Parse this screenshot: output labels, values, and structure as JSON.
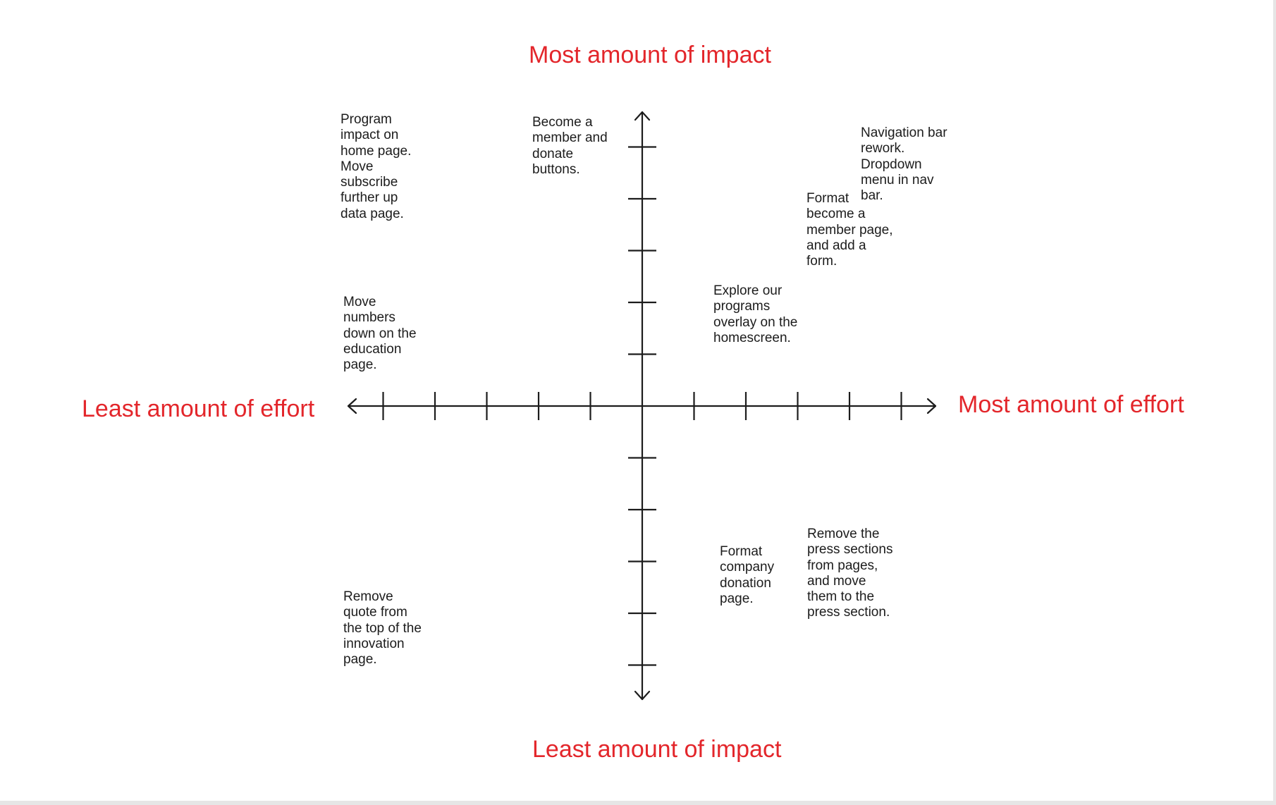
{
  "axes": {
    "top": "Most amount of impact",
    "bottom": "Least amount of impact",
    "left": "Least amount of effort",
    "right": "Most amount of effort",
    "label_color": "#e3262b",
    "line_color": "#1c1c1c"
  },
  "notes": [
    [
      "Program",
      "impact on",
      "home page.",
      "Move",
      "subscribe",
      "further up",
      "data page."
    ],
    [
      "Become a",
      "member and",
      "donate",
      "buttons."
    ],
    [
      "Navigation bar",
      "rework.",
      "Dropdown",
      "menu in nav",
      "bar."
    ],
    [
      "Format",
      "become a",
      "member page,",
      "and add a",
      "form."
    ],
    [
      "Explore our",
      "programs",
      "overlay on the",
      "homescreen."
    ],
    [
      "Move",
      "numbers",
      "down on the",
      "education",
      "page."
    ],
    [
      "Format",
      "company",
      "donation",
      "page."
    ],
    [
      "Remove the",
      "press sections",
      "from pages,",
      "and move",
      "them to the",
      "press section."
    ],
    [
      "Remove",
      "quote from",
      "the top of the",
      "innovation",
      "page."
    ]
  ]
}
